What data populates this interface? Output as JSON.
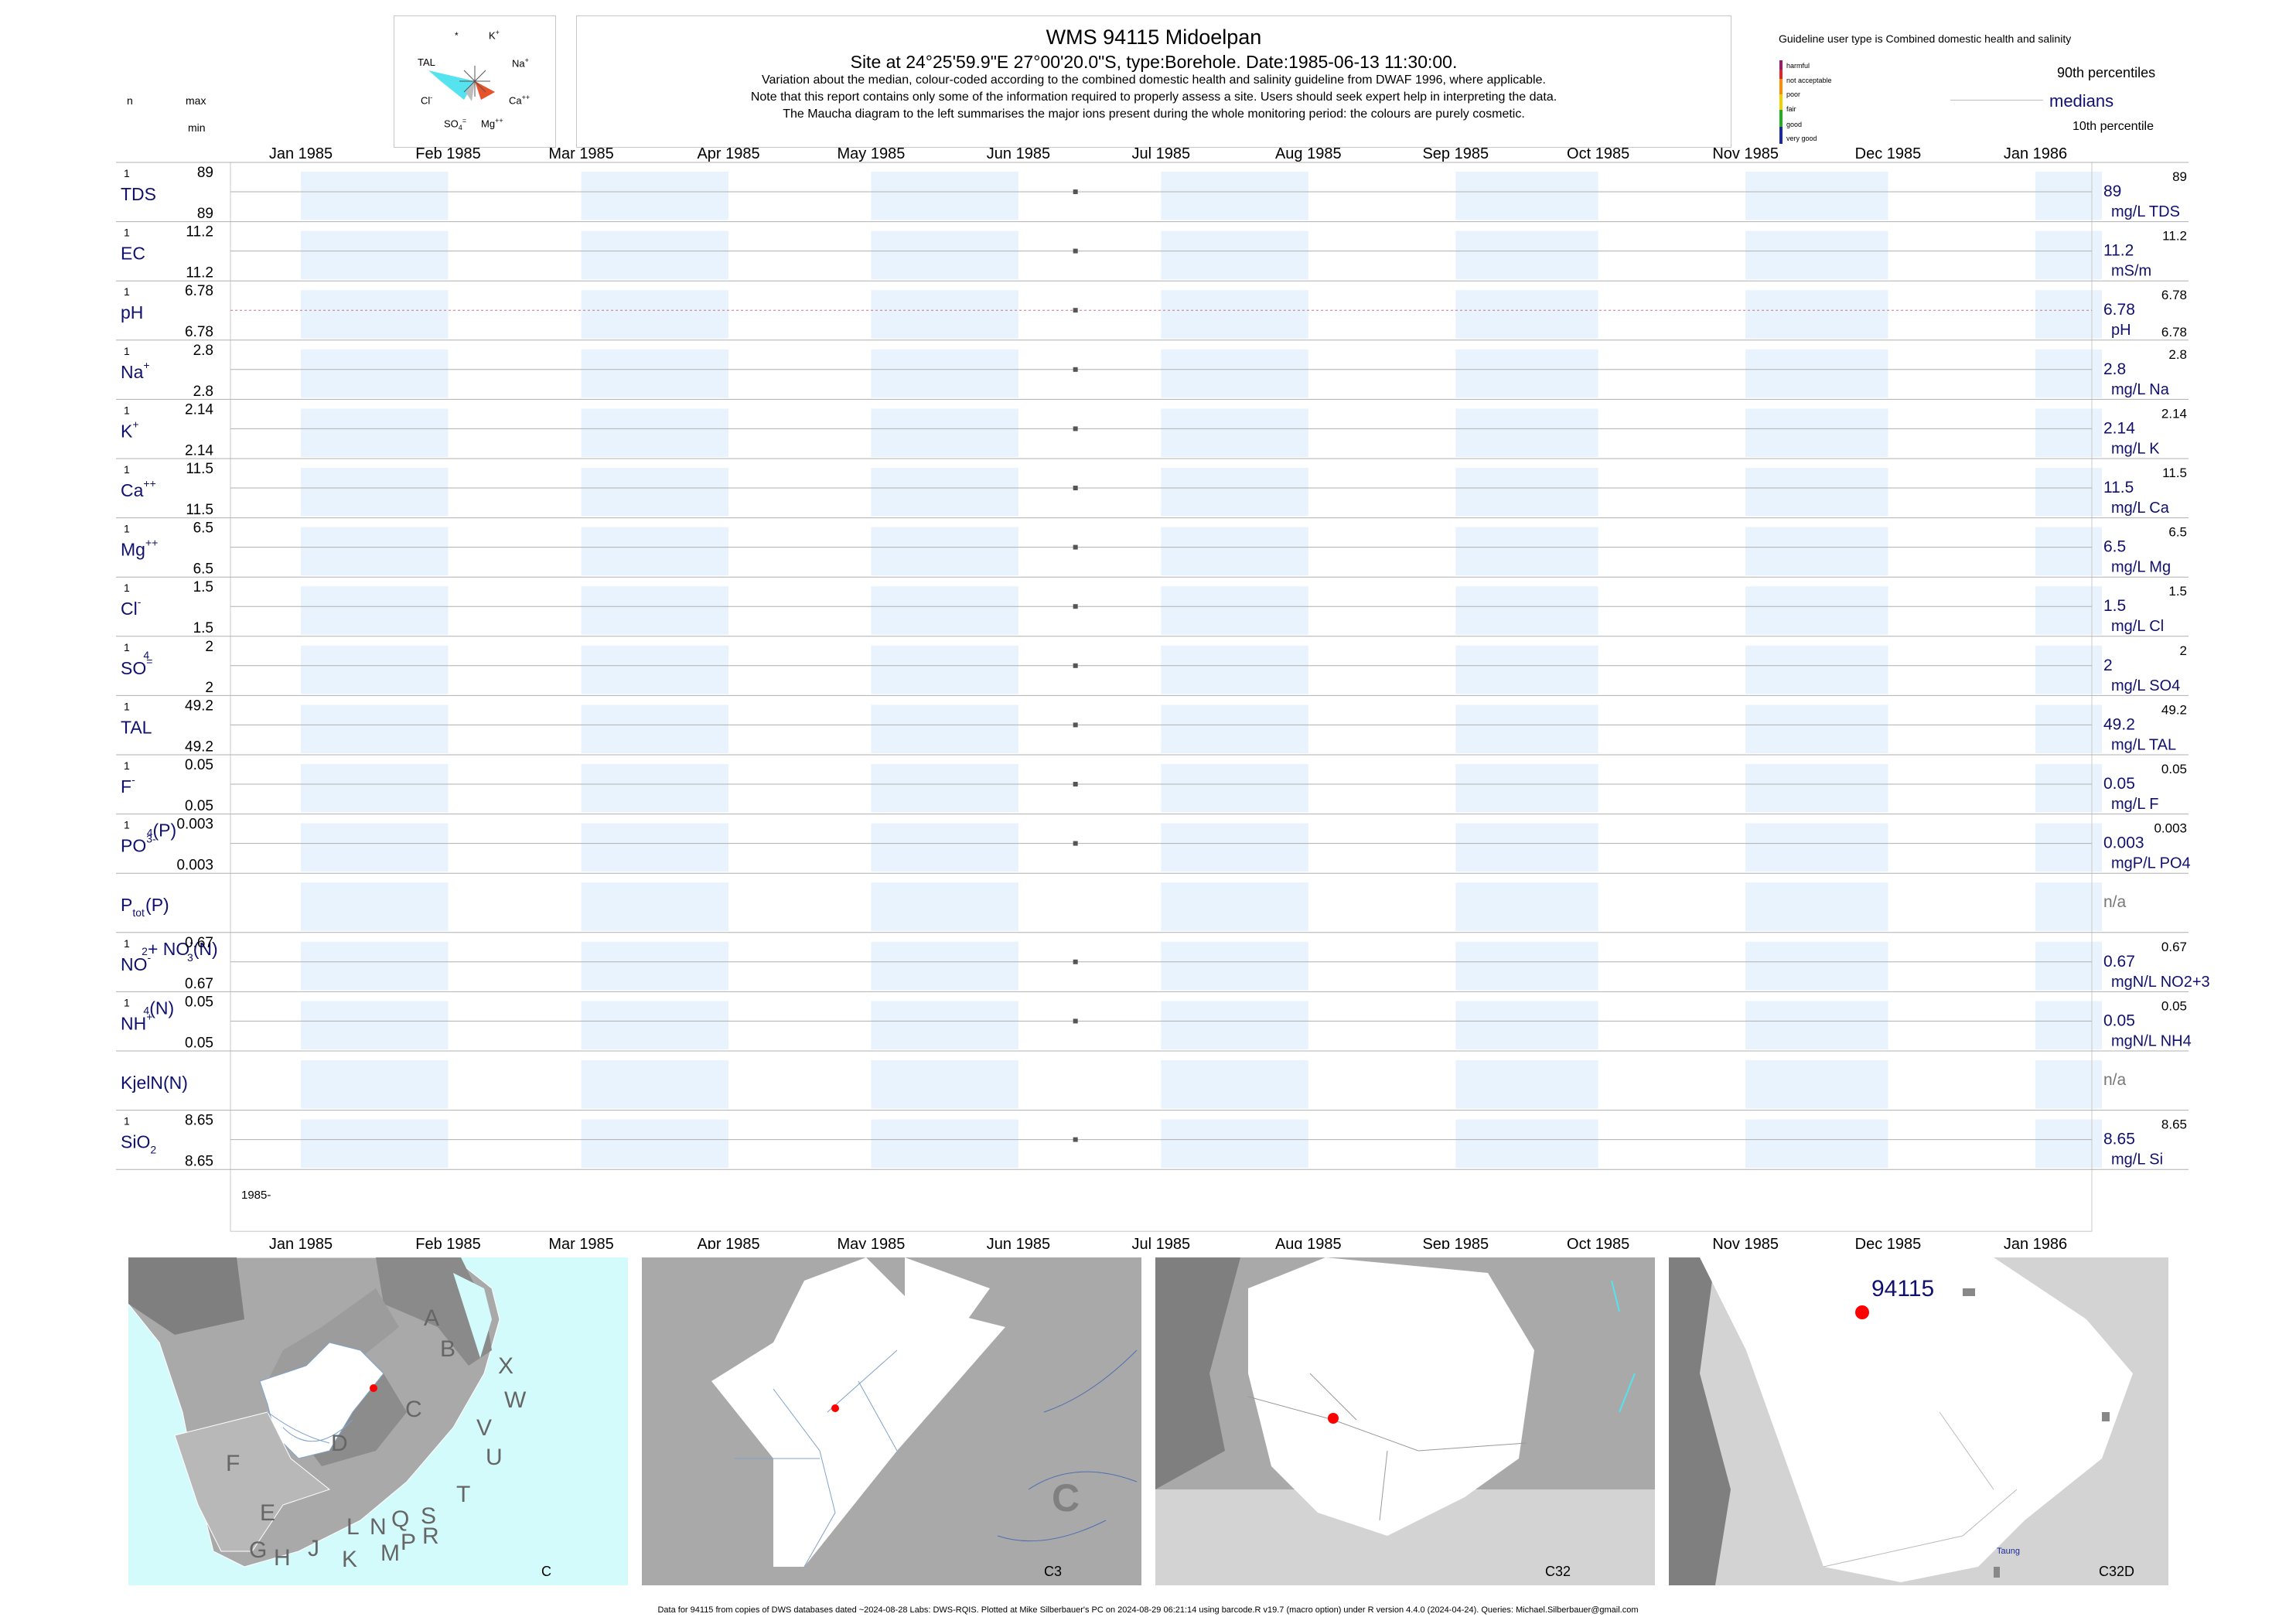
{
  "header": {
    "title": "WMS 94115  Midoelpan",
    "subtitle": "Site at 24°25'59.9\"E 27°00'20.0\"S, type:Borehole. Date:1985-06-13 11:30:00.",
    "note1": "Variation about the median,  colour-coded according to the combined domestic health and salinity guideline from DWAF 1996, where applicable.",
    "note2": "Note that this report contains only some of the information required to properly assess a site. Users should seek expert help in interpreting the data.",
    "note3": "The Maucha diagram to the left summarises the major ions present during the whole monitoring period: the colours are purely cosmetic."
  },
  "left_header": {
    "n": "n",
    "max": "max",
    "min": "min"
  },
  "maucha": {
    "labels": {
      "star": "*",
      "k": "K",
      "k_sup": "+",
      "tal": "TAL",
      "na": "Na",
      "na_sup": "+",
      "cl": "Cl",
      "cl_sup": "-",
      "ca": "Ca",
      "ca_sup": "++",
      "so4": "SO",
      "so4_sub": "4",
      "so4_sup": "=",
      "mg": "Mg",
      "mg_sup": "++"
    },
    "colors": {
      "tal": "#55e3ef",
      "na": "#ff6a2a",
      "ca": "#e8522a",
      "cl": "#bdbdbd"
    }
  },
  "guideline": {
    "title": "Guideline user type is Combined domestic health and salinity",
    "levels": [
      {
        "label": "harmful",
        "color": "#9b1a6a"
      },
      {
        "label": "not acceptable",
        "color": "#e8202a"
      },
      {
        "label": "poor",
        "color": "#ff8c00"
      },
      {
        "label": "fair",
        "color": "#f2d000"
      },
      {
        "label": "good",
        "color": "#22b022"
      },
      {
        "label": "very good",
        "color": "#1a2aa0"
      }
    ],
    "p90": "90th percentiles",
    "medians": "medians",
    "p10": "10th percentile"
  },
  "chart_data": {
    "type": "scatter",
    "x_axis": {
      "ticks": [
        "Jan 1985",
        "Feb 1985",
        "Mar 1985",
        "Apr 1985",
        "May 1985",
        "Jun 1985",
        "Jul 1985",
        "Aug 1985",
        "Sep 1985",
        "Oct 1985",
        "Nov 1985",
        "Dec 1985",
        "Jan 1986"
      ],
      "start_label": "1985-",
      "range": [
        "1985-01-01",
        "1986-01-01"
      ]
    },
    "sample_date": "1985-06-13",
    "series": [
      {
        "name": "TDS",
        "sup": "",
        "sub": "",
        "n": "1",
        "max": "89",
        "min": "89",
        "value": 89,
        "median": "89",
        "unit": "mg/L TDS",
        "p90": "89",
        "p10": ""
      },
      {
        "name": "EC",
        "sup": "",
        "sub": "",
        "n": "1",
        "max": "11.2",
        "min": "11.2",
        "value": 11.2,
        "median": "11.2",
        "unit": "mS/m",
        "p90": "11.2",
        "p10": ""
      },
      {
        "name": "pH",
        "sup": "",
        "sub": "",
        "n": "1",
        "max": "6.78",
        "min": "6.78",
        "value": 6.78,
        "median": "6.78",
        "unit": "pH",
        "p90": "6.78",
        "p10": "6.78"
      },
      {
        "name": "Na",
        "sup": "+",
        "sub": "",
        "n": "1",
        "max": "2.8",
        "min": "2.8",
        "value": 2.8,
        "median": "2.8",
        "unit": "mg/L Na",
        "p90": "2.8",
        "p10": ""
      },
      {
        "name": "K",
        "sup": "+",
        "sub": "",
        "n": "1",
        "max": "2.14",
        "min": "2.14",
        "value": 2.14,
        "median": "2.14",
        "unit": "mg/L K",
        "p90": "2.14",
        "p10": ""
      },
      {
        "name": "Ca",
        "sup": "++",
        "sub": "",
        "n": "1",
        "max": "11.5",
        "min": "11.5",
        "value": 11.5,
        "median": "11.5",
        "unit": "mg/L Ca",
        "p90": "11.5",
        "p10": ""
      },
      {
        "name": "Mg",
        "sup": "++",
        "sub": "",
        "n": "1",
        "max": "6.5",
        "min": "6.5",
        "value": 6.5,
        "median": "6.5",
        "unit": "mg/L Mg",
        "p90": "6.5",
        "p10": ""
      },
      {
        "name": "Cl",
        "sup": "-",
        "sub": "",
        "n": "1",
        "max": "1.5",
        "min": "1.5",
        "value": 1.5,
        "median": "1.5",
        "unit": "mg/L Cl",
        "p90": "1.5",
        "p10": ""
      },
      {
        "name": "SO",
        "sup": "=",
        "sub": "4",
        "n": "1",
        "max": "2",
        "min": "2",
        "value": 2,
        "median": "2",
        "unit": "mg/L SO4",
        "p90": "2",
        "p10": ""
      },
      {
        "name": "TAL",
        "sup": "",
        "sub": "",
        "n": "1",
        "max": "49.2",
        "min": "49.2",
        "value": 49.2,
        "median": "49.2",
        "unit": "mg/L TAL",
        "p90": "49.2",
        "p10": ""
      },
      {
        "name": "F",
        "sup": "-",
        "sub": "",
        "n": "1",
        "max": "0.05",
        "min": "0.05",
        "value": 0.05,
        "median": "0.05",
        "unit": "mg/L F",
        "p90": "0.05",
        "p10": ""
      },
      {
        "name": "PO",
        "sup": "3-",
        "sub": "4",
        "suffix": "(P)",
        "n": "1",
        "max": "0.003",
        "min": "0.003",
        "value": 0.003,
        "median": "0.003",
        "unit": "mgP/L PO4",
        "p90": "0.003",
        "p10": ""
      },
      {
        "name": "P",
        "sup": "",
        "sub": "tot",
        "suffix": "(P)",
        "n": "",
        "max": "",
        "min": "",
        "value": null,
        "median": "n/a",
        "unit": "",
        "p90": "",
        "p10": ""
      },
      {
        "name": "NO",
        "sup": "-",
        "sub": "2",
        "suffix": "+ NO",
        "sup2": "-",
        "sub2": "3",
        "suffix2": "(N)",
        "n": "1",
        "max": "0.67",
        "min": "0.67",
        "value": 0.67,
        "median": "0.67",
        "unit": "mgN/L NO2+3",
        "p90": "0.67",
        "p10": ""
      },
      {
        "name": "NH",
        "sup": "+",
        "sub": "4",
        "suffix": "(N)",
        "n": "1",
        "max": "0.05",
        "min": "0.05",
        "value": 0.05,
        "median": "0.05",
        "unit": "mgN/L NH4",
        "p90": "0.05",
        "p10": ""
      },
      {
        "name": "KjelN(N)",
        "sup": "",
        "sub": "",
        "n": "",
        "max": "",
        "min": "",
        "value": null,
        "median": "n/a",
        "unit": "",
        "p90": "",
        "p10": ""
      },
      {
        "name": "SiO",
        "sup": "",
        "sub": "2",
        "n": "1",
        "max": "8.65",
        "min": "8.65",
        "value": 8.65,
        "median": "8.65",
        "unit": "mg/L Si",
        "p90": "8.65",
        "p10": ""
      }
    ],
    "colors": {
      "band": "#e8f3fd",
      "point": "#555555",
      "ph_line": "#cc7788",
      "text": "#10106e"
    }
  },
  "maps": [
    {
      "label": "C",
      "letters": [
        "A",
        "B",
        "X",
        "W",
        "C",
        "D",
        "V",
        "U",
        "F",
        "T",
        "E",
        "S",
        "R",
        "Q",
        "N",
        "L",
        "P",
        "G",
        "H",
        "J",
        "K",
        "M"
      ]
    },
    {
      "label": "C3",
      "big_letter": "C"
    },
    {
      "label": "C32"
    },
    {
      "label": "C32D",
      "site": "94115",
      "town": "Taung"
    }
  ],
  "footer": "Data for 94115 from copies of DWS databases dated ~2024-08-28 Labs: DWS-RQIS. Plotted at Mike Silberbauer's PC on 2024-08-29 06:21:14 using barcode.R v19.7 (macro option) under R version 4.4.0 (2024-04-24). Queries: Michael.Silberbauer@gmail.com"
}
